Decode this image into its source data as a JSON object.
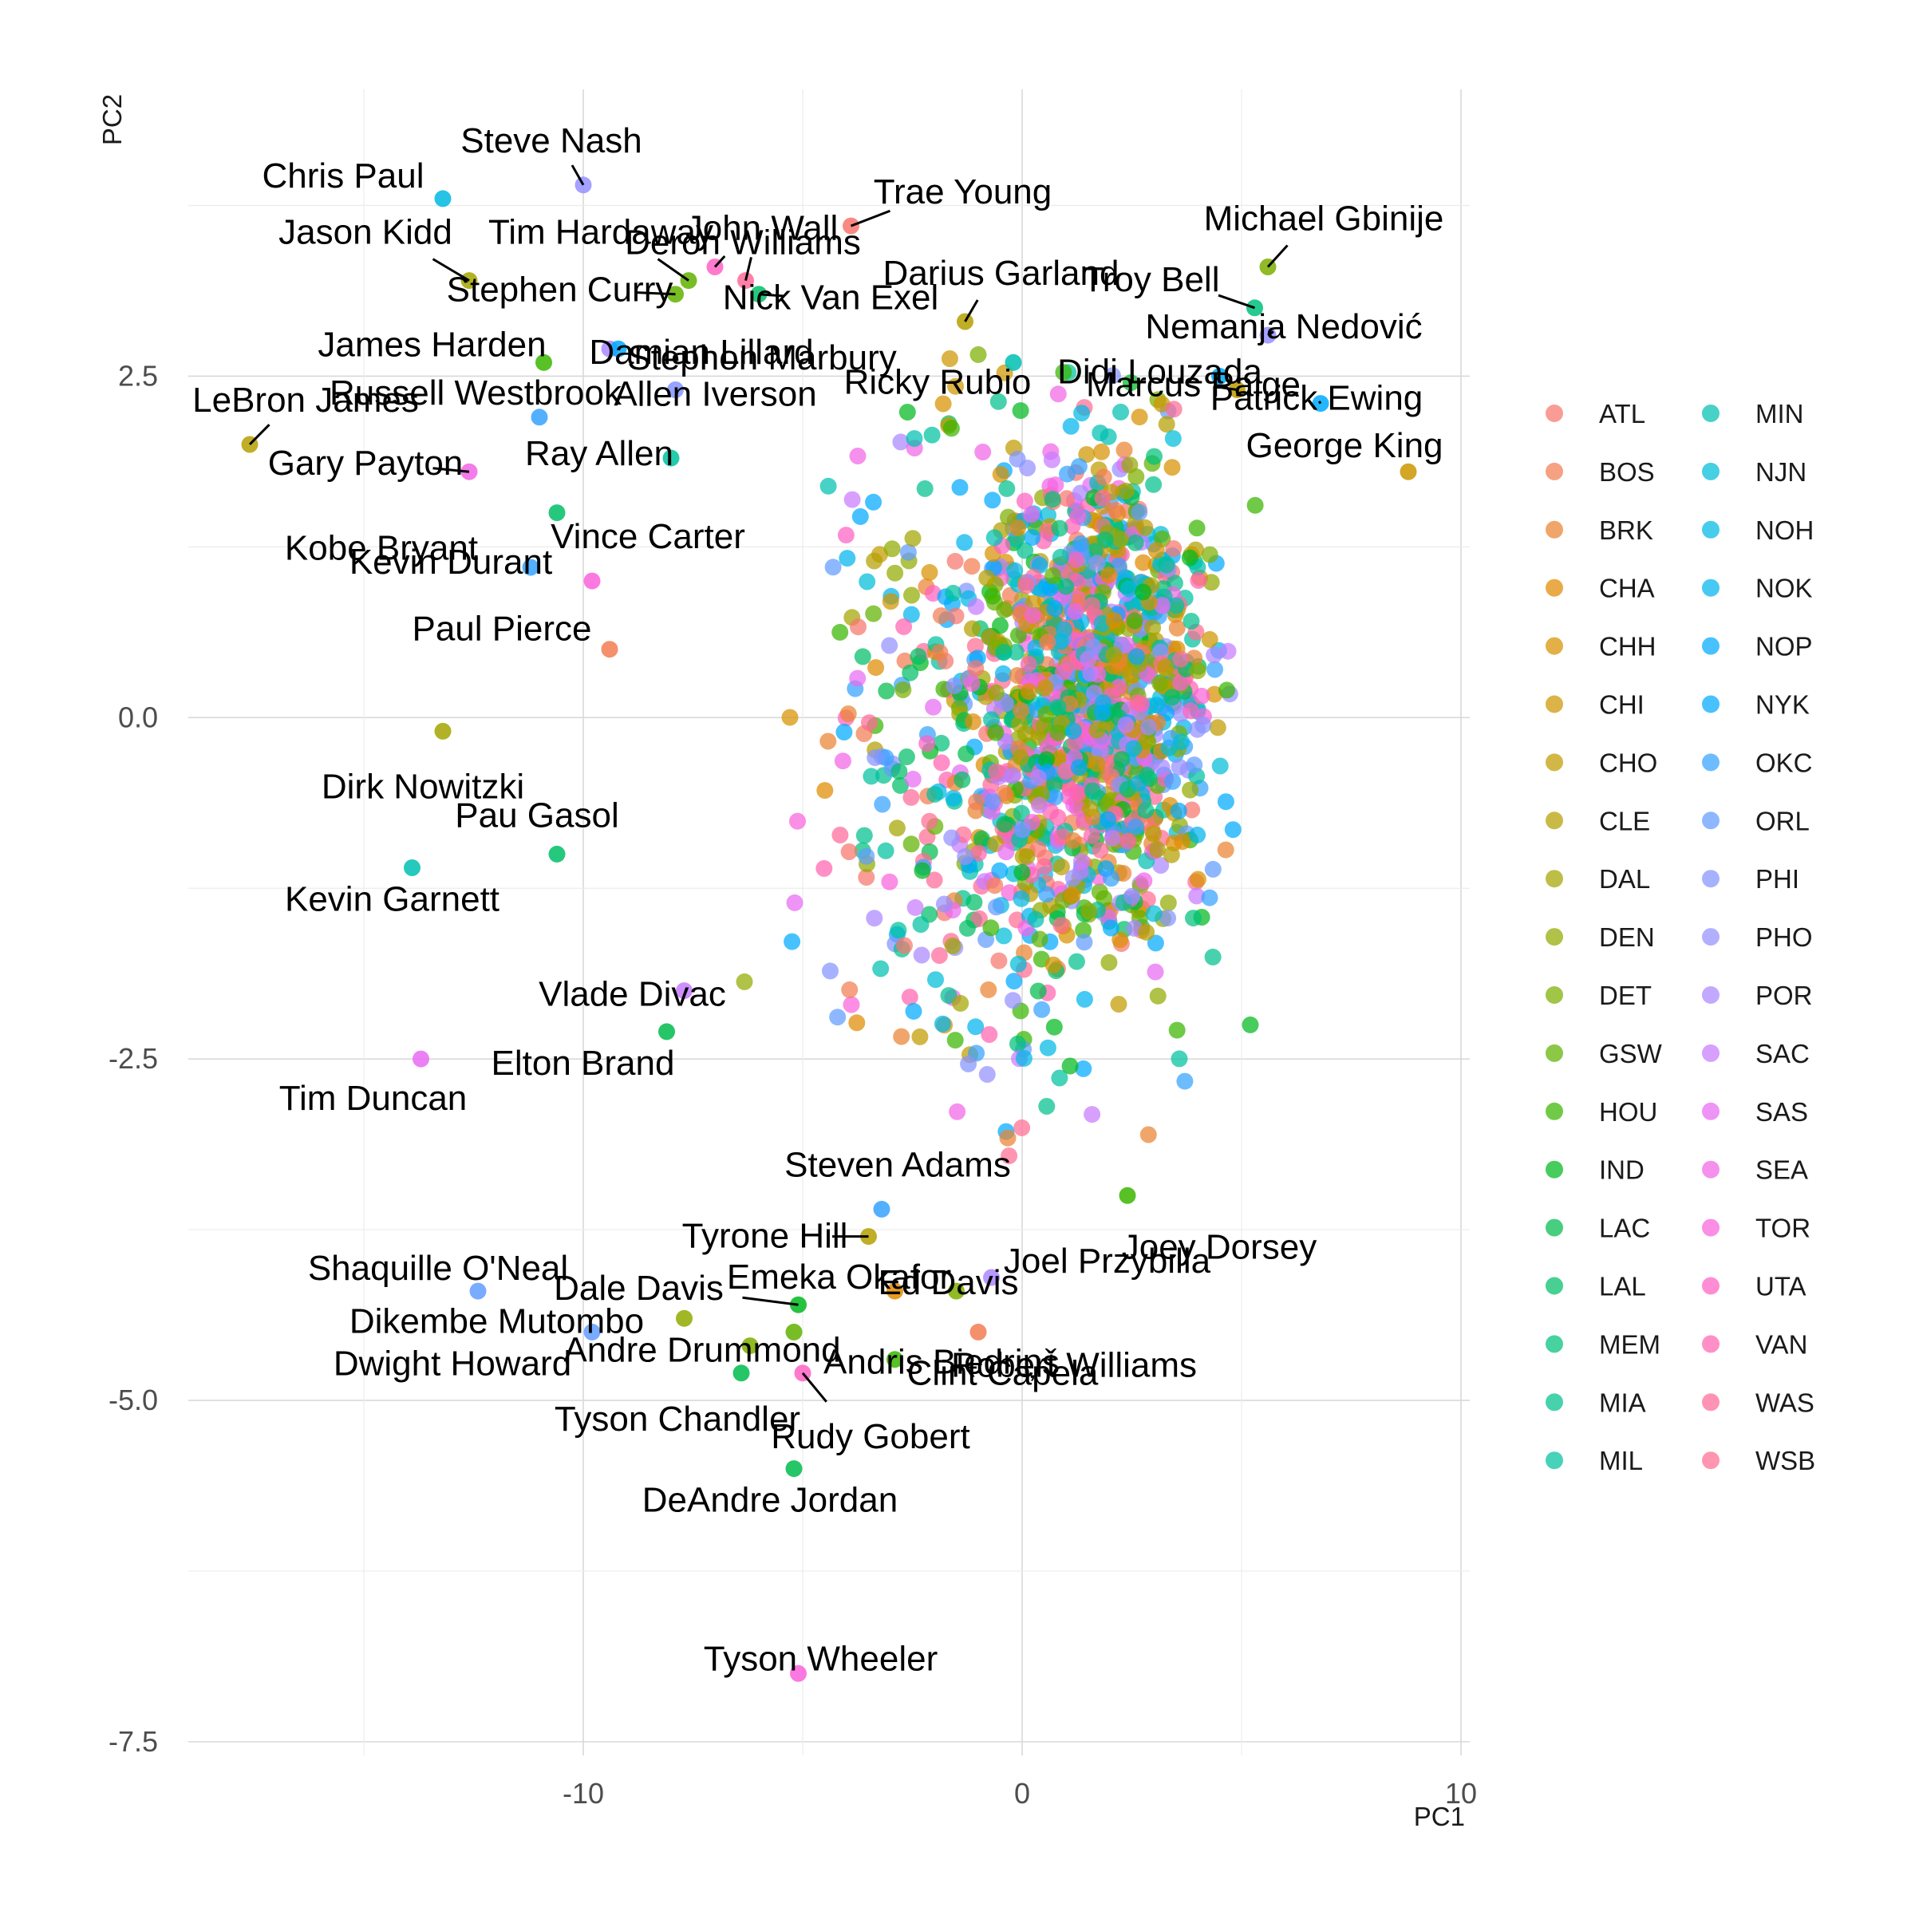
{
  "chart_data": {
    "type": "scatter",
    "title": "",
    "xlabel": "PC1",
    "ylabel": "PC2",
    "xlim": [
      -19,
      10.2
    ],
    "ylim": [
      -7.6,
      4.6
    ],
    "x_ticks": [
      -10,
      0,
      10
    ],
    "x_tick_labels": [
      "-10",
      "0",
      "10"
    ],
    "y_ticks": [
      2.5,
      0,
      -2.5,
      -5,
      -7.5
    ],
    "y_tick_labels": [
      "2.5",
      "0.0",
      "-2.5",
      "-5.0",
      "-7.5"
    ],
    "grid": true,
    "legend_position": "right",
    "legend_columns": 2,
    "teams": [
      "ATL",
      "BOS",
      "BRK",
      "CHA",
      "CHH",
      "CHI",
      "CHO",
      "CLE",
      "DAL",
      "DEN",
      "DET",
      "GSW",
      "HOU",
      "IND",
      "LAC",
      "LAL",
      "MEM",
      "MIA",
      "MIL",
      "MIN",
      "NJN",
      "NOH",
      "NOK",
      "NOP",
      "NYK",
      "OKC",
      "ORL",
      "PHI",
      "PHO",
      "POR",
      "SAC",
      "SAS",
      "SEA",
      "TOR",
      "UTA",
      "VAN",
      "WAS",
      "WSB"
    ],
    "team_colors": [
      "#F8766D",
      "#F27D52",
      "#EA8331",
      "#E18A00",
      "#D89000",
      "#CD9600",
      "#C09B00",
      "#B4A000",
      "#A3A500",
      "#92AA00",
      "#7CAE00",
      "#60B200",
      "#39B600",
      "#00B81F",
      "#00BB4E",
      "#00BE67",
      "#00C07B",
      "#00C08D",
      "#00C19F",
      "#00BFB1",
      "#00BCD8",
      "#00B9E3",
      "#00B4EF",
      "#00ABFD",
      "#00A9FF",
      "#35A2FF",
      "#619CFF",
      "#8494FF",
      "#9590FF",
      "#AB88FF",
      "#C77CFF",
      "#E76BF3",
      "#F265E6",
      "#FA62DB",
      "#FF61C3",
      "#FF64B0",
      "#FF6A98",
      "#FF6C91"
    ],
    "labeled_points": [
      {
        "name": "Steve Nash",
        "x": -10.0,
        "y": 3.9,
        "team": "PHO"
      },
      {
        "name": "Chris Paul",
        "x": -13.2,
        "y": 3.8,
        "team": "NOH"
      },
      {
        "name": "Deron Williams",
        "x": -7.0,
        "y": 3.3,
        "team": "UTA"
      },
      {
        "name": "Jason Kidd",
        "x": -12.6,
        "y": 3.2,
        "team": "DAL"
      },
      {
        "name": "Tim Hardaway",
        "x": -7.6,
        "y": 3.2,
        "team": "GSW"
      },
      {
        "name": "John Wall",
        "x": -6.3,
        "y": 3.2,
        "team": "WAS"
      },
      {
        "name": "Trae Young",
        "x": -3.9,
        "y": 3.6,
        "team": "ATL"
      },
      {
        "name": "Michael Gbinije",
        "x": 5.6,
        "y": 3.3,
        "team": "DET"
      },
      {
        "name": "Stephen Curry",
        "x": -7.9,
        "y": 3.1,
        "team": "GSW"
      },
      {
        "name": "Nick Van Exel",
        "x": -6.0,
        "y": 3.1,
        "team": "LAL"
      },
      {
        "name": "Darius Garland",
        "x": -1.3,
        "y": 2.9,
        "team": "CLE"
      },
      {
        "name": "Troy Bell",
        "x": 5.3,
        "y": 3.0,
        "team": "MEM"
      },
      {
        "name": "Nemanja Nedović",
        "x": 5.6,
        "y": 2.8,
        "team": "PHO"
      },
      {
        "name": "Damian Lillard",
        "x": -9.4,
        "y": 2.7,
        "team": "POR"
      },
      {
        "name": "Stephon Marbury",
        "x": -9.2,
        "y": 2.7,
        "team": "NYK"
      },
      {
        "name": "Didi Louzada",
        "x": 4.5,
        "y": 2.5,
        "team": "NOP"
      },
      {
        "name": "James Harden",
        "x": -10.9,
        "y": 2.6,
        "team": "HOU"
      },
      {
        "name": "Ricky Rubio",
        "x": -0.2,
        "y": 2.6,
        "team": "MIN"
      },
      {
        "name": "Patrick Ewing",
        "x": 6.8,
        "y": 2.3,
        "team": "NYK"
      },
      {
        "name": "Marcus Paige",
        "x": 4.9,
        "y": 2.4,
        "team": "CHO"
      },
      {
        "name": "Allen Iverson",
        "x": -7.9,
        "y": 2.4,
        "team": "PHI"
      },
      {
        "name": "Russell Westbrook",
        "x": -11.0,
        "y": 2.2,
        "team": "OKC"
      },
      {
        "name": "LeBron James",
        "x": -17.6,
        "y": 2.0,
        "team": "CLE"
      },
      {
        "name": "Gary Payton",
        "x": -12.6,
        "y": 1.8,
        "team": "SEA"
      },
      {
        "name": "George King",
        "x": 8.8,
        "y": 1.8,
        "team": "CHI"
      },
      {
        "name": "Ray Allen",
        "x": -8.0,
        "y": 1.9,
        "team": "MIL"
      },
      {
        "name": "Kobe Bryant",
        "x": -10.6,
        "y": 1.5,
        "team": "LAL"
      },
      {
        "name": "Kevin Durant",
        "x": -11.2,
        "y": 1.1,
        "team": "OKC"
      },
      {
        "name": "Vince Carter",
        "x": -9.8,
        "y": 1.0,
        "team": "TOR"
      },
      {
        "name": "Paul Pierce",
        "x": -9.4,
        "y": 0.5,
        "team": "BOS"
      },
      {
        "name": "Dirk Nowitzki",
        "x": -13.2,
        "y": -0.1,
        "team": "DAL"
      },
      {
        "name": "Pau Gasol",
        "x": -10.6,
        "y": -1.0,
        "team": "LAL"
      },
      {
        "name": "Kevin Garnett",
        "x": -13.9,
        "y": -1.1,
        "team": "MIN"
      },
      {
        "name": "Vlade Divac",
        "x": -7.7,
        "y": -2.0,
        "team": "SAC"
      },
      {
        "name": "Elton Brand",
        "x": -8.1,
        "y": -2.3,
        "team": "LAC"
      },
      {
        "name": "Tim Duncan",
        "x": -13.7,
        "y": -2.5,
        "team": "SAS"
      },
      {
        "name": "Steven Adams",
        "x": -3.2,
        "y": -3.6,
        "team": "OKC"
      },
      {
        "name": "Tyrone Hill",
        "x": -3.5,
        "y": -3.8,
        "team": "CLE"
      },
      {
        "name": "Joey Dorsey",
        "x": 2.4,
        "y": -3.5,
        "team": "HOU"
      },
      {
        "name": "Shaquille O'Neal",
        "x": -12.4,
        "y": -4.2,
        "team": "ORL"
      },
      {
        "name": "Dale Davis",
        "x": -5.1,
        "y": -4.3,
        "team": "IND"
      },
      {
        "name": "Ed Davis",
        "x": -1.5,
        "y": -4.2,
        "team": "DET"
      },
      {
        "name": "Emeka Okafor",
        "x": -2.9,
        "y": -4.2,
        "team": "CHA"
      },
      {
        "name": "Joel Przybilla",
        "x": -0.7,
        "y": -4.1,
        "team": "POR"
      },
      {
        "name": "Dikembe Mutombo",
        "x": -7.7,
        "y": -4.4,
        "team": "DEN"
      },
      {
        "name": "Andris Biedriņš",
        "x": -5.2,
        "y": -4.5,
        "team": "GSW"
      },
      {
        "name": "Robert Williams",
        "x": -1.0,
        "y": -4.5,
        "team": "BOS"
      },
      {
        "name": "Andre Drummond",
        "x": -6.2,
        "y": -4.6,
        "team": "DET"
      },
      {
        "name": "Dwight Howard",
        "x": -9.8,
        "y": -4.5,
        "team": "ORL"
      },
      {
        "name": "Clint Capela",
        "x": -2.9,
        "y": -4.7,
        "team": "HOU"
      },
      {
        "name": "Tyson Chandler",
        "x": -6.4,
        "y": -4.8,
        "team": "LAC"
      },
      {
        "name": "Rudy Gobert",
        "x": -5.0,
        "y": -4.8,
        "team": "UTA"
      },
      {
        "name": "DeAndre Jordan",
        "x": -5.2,
        "y": -5.5,
        "team": "LAC"
      },
      {
        "name": "Tyson Wheeler",
        "x": -5.1,
        "y": -7.0,
        "team": "TOR"
      }
    ],
    "unlabeled_point_count": 1600
  }
}
